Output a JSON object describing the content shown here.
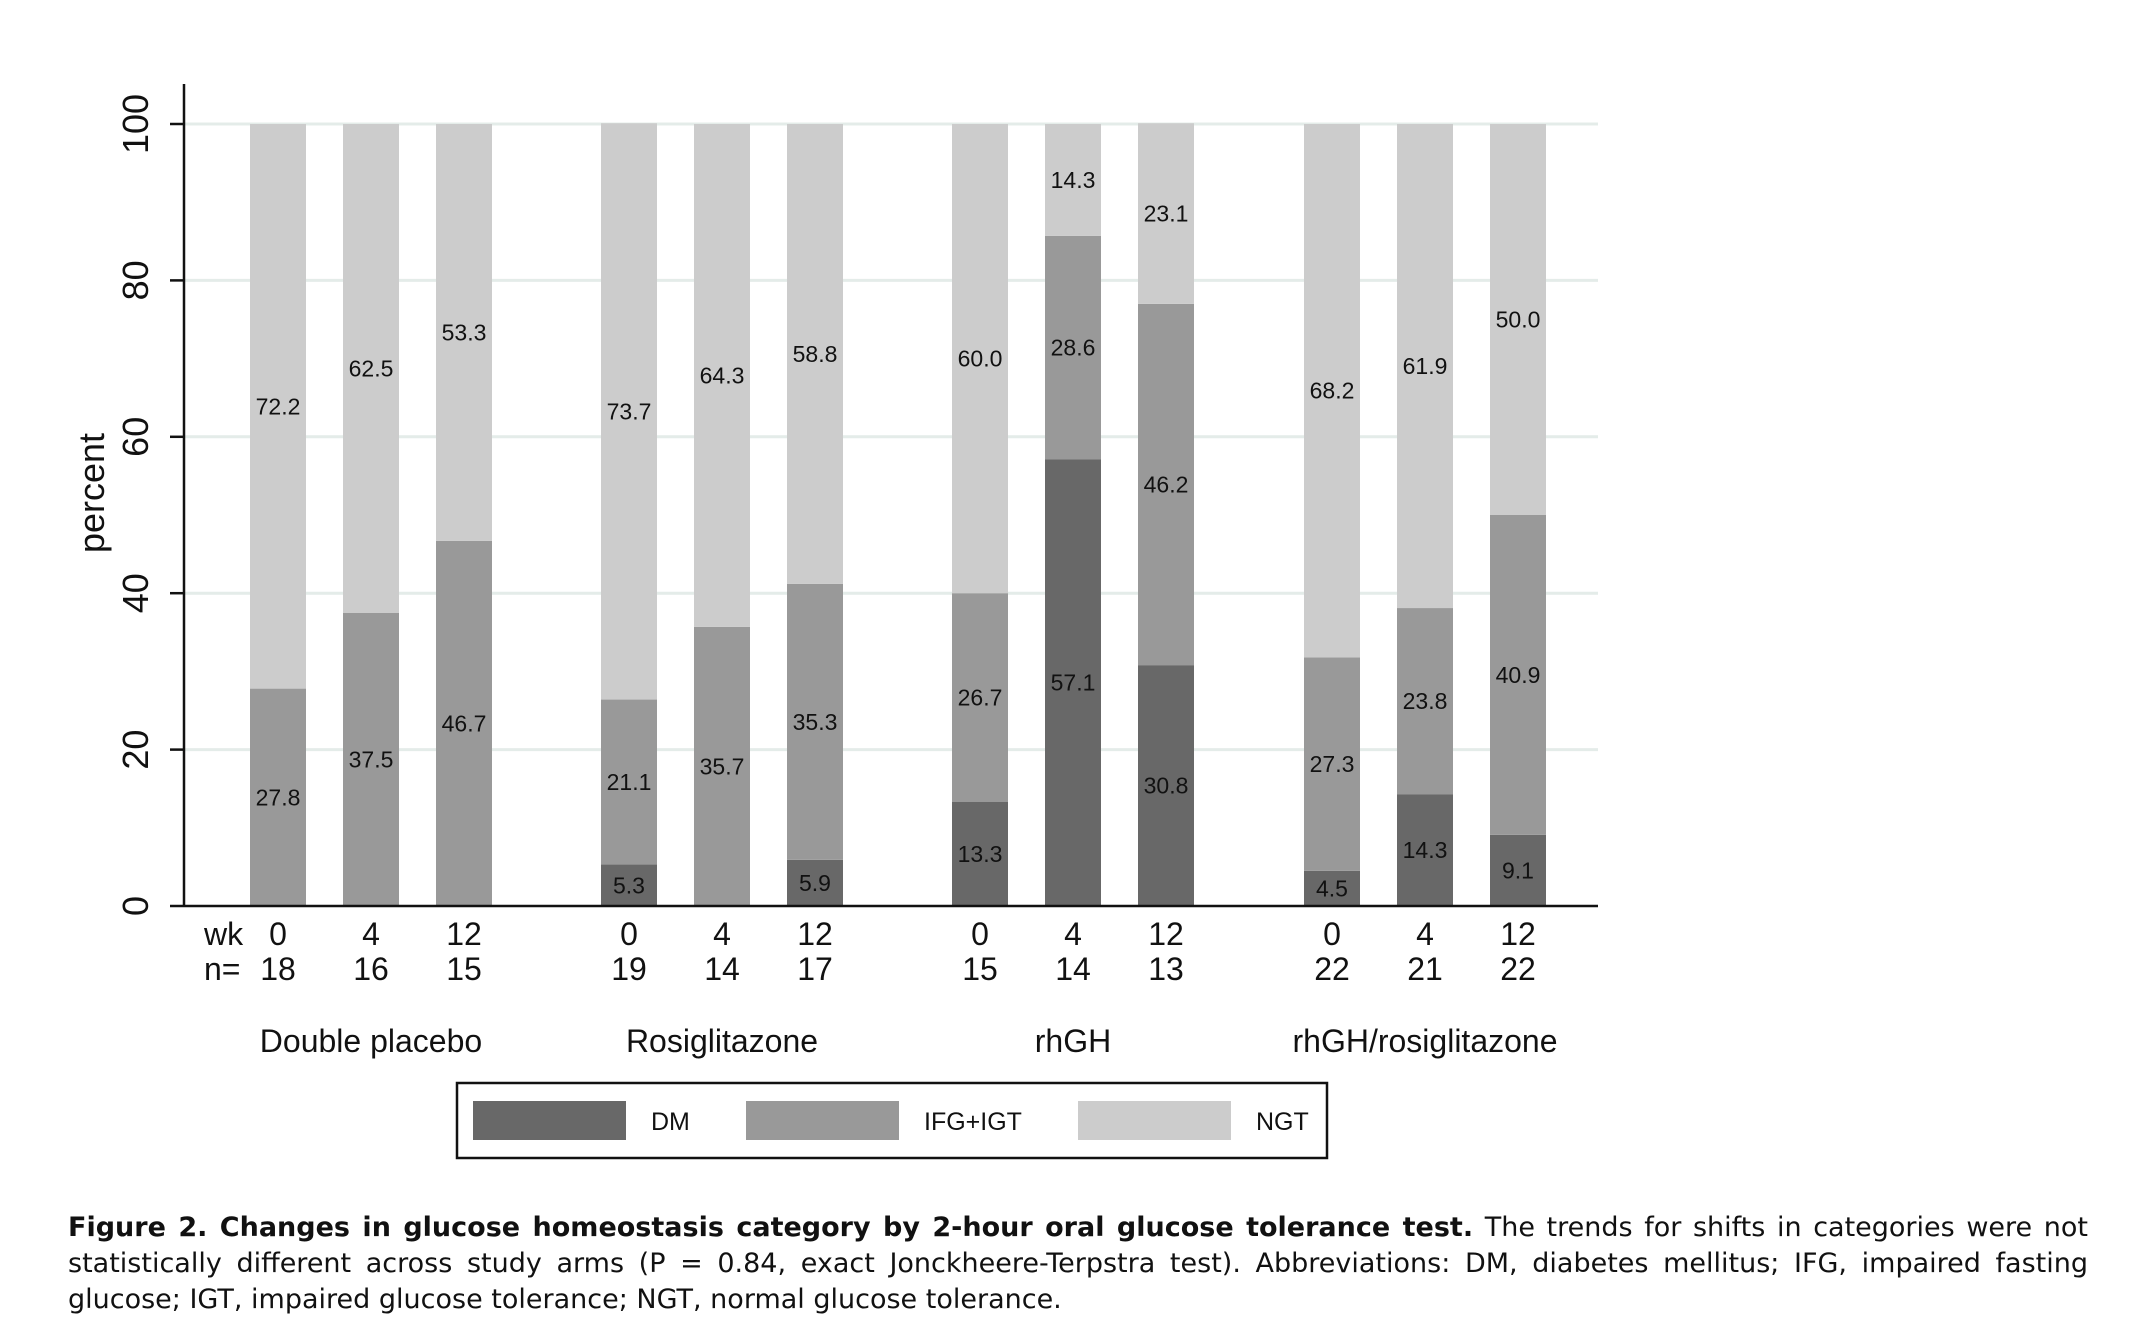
{
  "chart_data": {
    "type": "bar",
    "stacked": true,
    "ylabel": "percent",
    "ylim": [
      0,
      100
    ],
    "yticks": [
      0,
      20,
      40,
      60,
      80,
      100
    ],
    "grid": true,
    "row_labels": {
      "week": "wk",
      "n": "n="
    },
    "groups": [
      {
        "name": "Double placebo",
        "bars": [
          {
            "wk": "0",
            "n": "18",
            "values": [
              0,
              27.8,
              72.2
            ],
            "labels": [
              "",
              "27.8",
              "72.2"
            ]
          },
          {
            "wk": "4",
            "n": "16",
            "values": [
              0,
              37.5,
              62.5
            ],
            "labels": [
              "",
              "37.5",
              "62.5"
            ]
          },
          {
            "wk": "12",
            "n": "15",
            "values": [
              0,
              46.7,
              53.3
            ],
            "labels": [
              "",
              "46.7",
              "53.3"
            ]
          }
        ]
      },
      {
        "name": "Rosiglitazone",
        "bars": [
          {
            "wk": "0",
            "n": "19",
            "values": [
              5.3,
              21.1,
              73.7
            ],
            "labels": [
              "5.3",
              "21.1",
              "73.7"
            ]
          },
          {
            "wk": "4",
            "n": "14",
            "values": [
              0,
              35.7,
              64.3
            ],
            "labels": [
              "",
              "35.7",
              "64.3"
            ]
          },
          {
            "wk": "12",
            "n": "17",
            "values": [
              5.9,
              35.3,
              58.8
            ],
            "labels": [
              "5.9",
              "35.3",
              "58.8"
            ]
          }
        ]
      },
      {
        "name": "rhGH",
        "bars": [
          {
            "wk": "0",
            "n": "15",
            "values": [
              13.3,
              26.7,
              60.0
            ],
            "labels": [
              "13.3",
              "26.7",
              "60.0"
            ]
          },
          {
            "wk": "4",
            "n": "14",
            "values": [
              57.1,
              28.6,
              14.3
            ],
            "labels": [
              "57.1",
              "28.6",
              "14.3"
            ]
          },
          {
            "wk": "12",
            "n": "13",
            "values": [
              30.8,
              46.2,
              23.1
            ],
            "labels": [
              "30.8",
              "46.2",
              "23.1"
            ]
          }
        ]
      },
      {
        "name": "rhGH/rosiglitazone",
        "bars": [
          {
            "wk": "0",
            "n": "22",
            "values": [
              4.5,
              27.3,
              68.2
            ],
            "labels": [
              "4.5",
              "27.3",
              "68.2"
            ]
          },
          {
            "wk": "4",
            "n": "21",
            "values": [
              14.3,
              23.8,
              61.9
            ],
            "labels": [
              "14.3",
              "23.8",
              "61.9"
            ]
          },
          {
            "wk": "12",
            "n": "22",
            "values": [
              9.1,
              40.9,
              50.0
            ],
            "labels": [
              "9.1",
              "40.9",
              "50.0"
            ]
          }
        ]
      }
    ],
    "series": [
      {
        "name": "DM",
        "color": "#686868"
      },
      {
        "name": "IFG+IGT",
        "color": "#999999"
      },
      {
        "name": "NGT",
        "color": "#cccccc"
      }
    ],
    "legend_position": "bottom"
  },
  "caption": {
    "title": "Figure 2. Changes in glucose homeostasis category by 2-hour oral glucose tolerance test.",
    "text": " The trends for shifts in categories were not statistically different across study arms (P = 0.84, exact Jonckheere-Terpstra test). Abbreviations: DM, diabetes mellitus; IFG, impaired fasting glucose; IGT, impaired glucose tolerance; NGT, normal glucose tolerance."
  }
}
